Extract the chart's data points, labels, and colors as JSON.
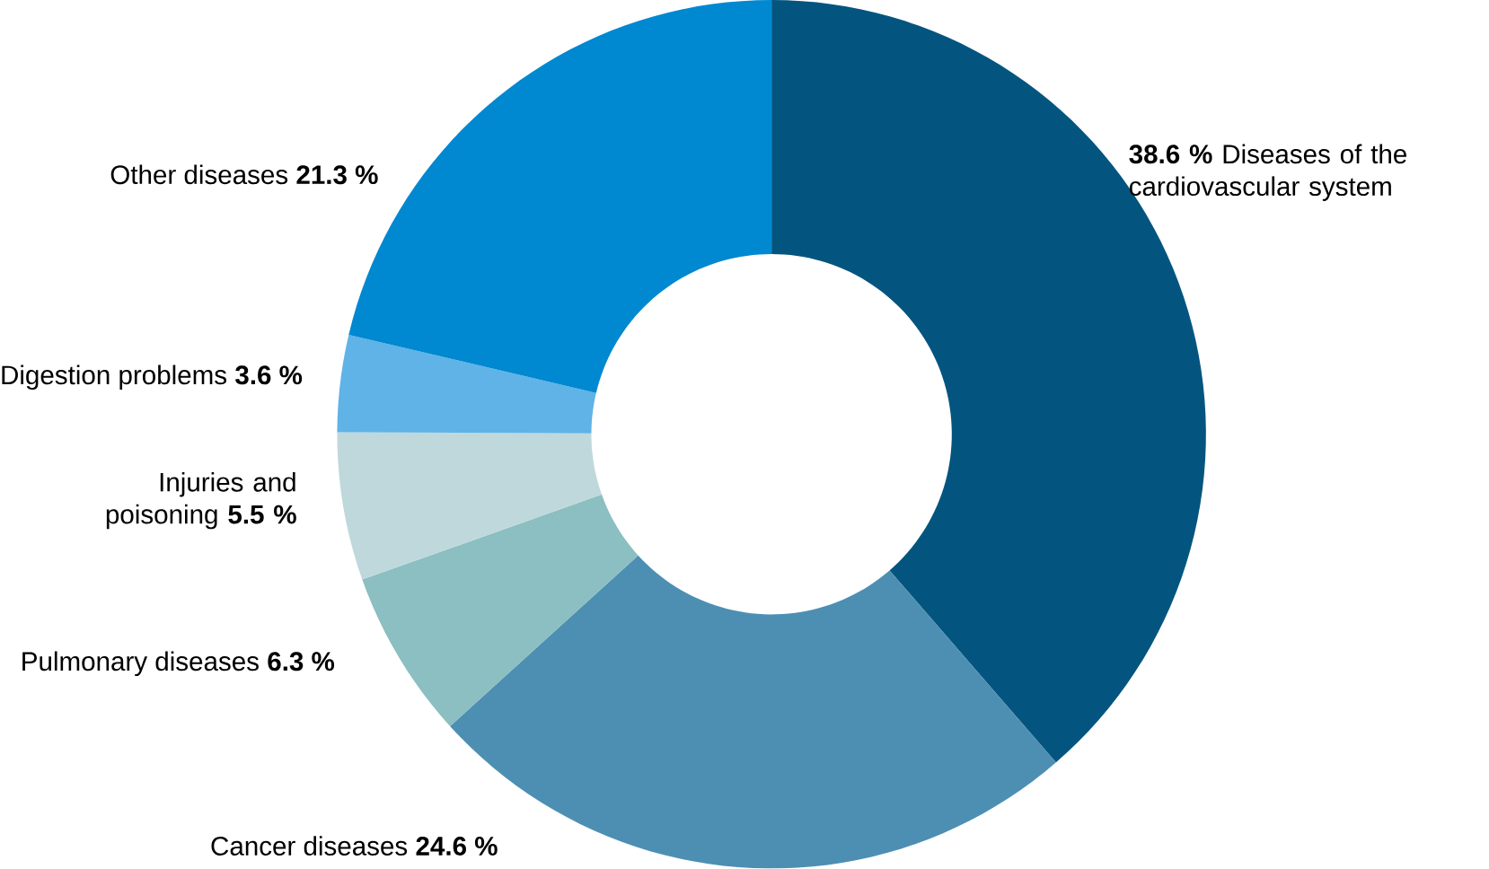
{
  "chart_data": {
    "type": "donut",
    "categories": [
      "Diseases of the cardiovascular system",
      "Cancer diseases",
      "Pulmonary diseases",
      "Injuries and poisoning",
      "Digestion problems",
      "Other diseases"
    ],
    "values": [
      38.6,
      24.6,
      6.3,
      5.5,
      3.6,
      21.3
    ],
    "value_labels": [
      "38.6 %",
      "24.6 %",
      "6.3 %",
      "5.5 %",
      "3.6 %",
      "21.3 %"
    ],
    "colors": [
      "#03557f",
      "#4d8fb3",
      "#8bbfc1",
      "#bfd8dc",
      "#5fb3e6",
      "#0088d1"
    ]
  }
}
